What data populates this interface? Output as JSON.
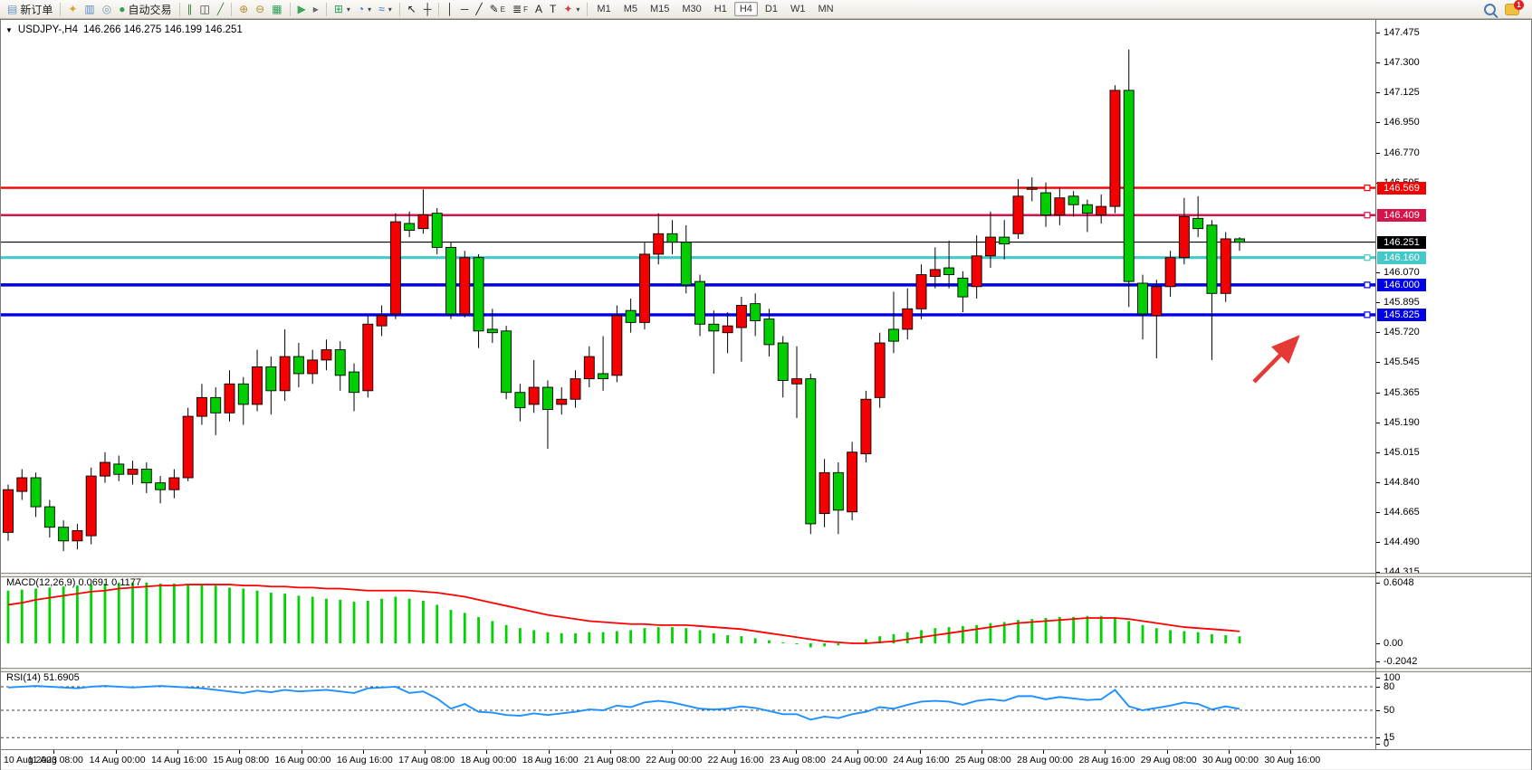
{
  "toolbar": {
    "new_order_label": "新订单",
    "auto_trading_label": "自动交易",
    "badge_count": "1",
    "timeframes": [
      "M1",
      "M5",
      "M15",
      "M30",
      "H1",
      "H4",
      "D1",
      "W1",
      "MN"
    ],
    "active_timeframe": "H4",
    "groups": [
      [
        {
          "name": "new-order-button",
          "glyph": "▤",
          "color": "#6d96c8",
          "labelKey": "new_order_label"
        }
      ],
      [
        {
          "name": "metaeditor-icon",
          "glyph": "✦",
          "color": "#d9a033"
        },
        {
          "name": "market-watch-icon",
          "glyph": "▥",
          "color": "#5b87c5"
        },
        {
          "name": "signals-icon",
          "glyph": "◎",
          "color": "#7f98ad"
        },
        {
          "name": "auto-trading-button",
          "glyph": "●",
          "color": "#2fa05c",
          "labelKey": "auto_trading_label"
        }
      ],
      [
        {
          "name": "bar-chart-icon",
          "glyph": "∥",
          "color": "#3a7d44"
        },
        {
          "name": "candlestick-chart-icon",
          "glyph": "◫",
          "color": "#333333"
        },
        {
          "name": "line-chart-icon",
          "glyph": "╱",
          "color": "#3a7d44"
        }
      ],
      [
        {
          "name": "zoom-in-icon",
          "glyph": "⊕",
          "color": "#b58a2a"
        },
        {
          "name": "zoom-out-icon",
          "glyph": "⊖",
          "color": "#b58a2a"
        },
        {
          "name": "tile-windows-icon",
          "glyph": "▦",
          "color": "#2e9e5b"
        }
      ],
      [
        {
          "name": "auto-scroll-icon",
          "glyph": "▶",
          "color": "#3aa657"
        },
        {
          "name": "chart-shift-icon",
          "glyph": "▸",
          "color": "#666666"
        }
      ],
      [
        {
          "name": "new-chart-dropdown",
          "glyph": "⊞",
          "color": "#2e9e5b",
          "caret": true
        },
        {
          "name": "period-dropdown",
          "glyph": "◔",
          "color": "#3a6fc4",
          "caret": true
        },
        {
          "name": "indicators-dropdown",
          "glyph": "≈",
          "color": "#3a6fc4",
          "caret": true
        }
      ],
      [
        {
          "name": "cursor-icon",
          "glyph": "↖",
          "color": "#222222"
        },
        {
          "name": "crosshair-icon",
          "glyph": "┼",
          "color": "#222222"
        }
      ],
      [
        {
          "name": "vertical-line-icon",
          "glyph": "│",
          "color": "#222222"
        },
        {
          "name": "horizontal-line-icon",
          "glyph": "─",
          "color": "#222222"
        },
        {
          "name": "trendline-icon",
          "glyph": "╱",
          "color": "#222222"
        },
        {
          "name": "equidistant-channel-icon",
          "glyph": "✎",
          "color": "#222222",
          "suffix": "E"
        },
        {
          "name": "fibonacci-icon",
          "glyph": "≣",
          "color": "#222222",
          "suffix": "F"
        },
        {
          "name": "text-icon",
          "glyph": "A",
          "color": "#222222"
        },
        {
          "name": "text-label-icon",
          "glyph": "T",
          "color": "#222222"
        },
        {
          "name": "arrows-dropdown",
          "glyph": "✦",
          "color": "#cc4444",
          "caret": true
        }
      ]
    ]
  },
  "chart": {
    "title_arrow": "▼",
    "symbol": "USDJPY-,H4",
    "ohlc": "146.266 146.275 146.199 146.251"
  },
  "indicators": {
    "macd": {
      "name": "MACD(12,26,9)",
      "values": "0.0691 0.1177"
    },
    "rsi": {
      "name": "RSI(14)",
      "value": "51.6905"
    }
  },
  "chart_data": {
    "type": "candlestick",
    "symbol": "USDJPY-",
    "timeframe": "H4",
    "up_color": "#f40000",
    "down_color": "#00ce00",
    "candles": [
      [
        144.55,
        144.83,
        144.5,
        144.8
      ],
      [
        144.79,
        144.92,
        144.74,
        144.87
      ],
      [
        144.87,
        144.9,
        144.64,
        144.7
      ],
      [
        144.7,
        144.74,
        144.52,
        144.58
      ],
      [
        144.58,
        144.62,
        144.44,
        144.5
      ],
      [
        144.5,
        144.6,
        144.45,
        144.56
      ],
      [
        144.53,
        144.93,
        144.48,
        144.88
      ],
      [
        144.88,
        145.02,
        144.84,
        144.96
      ],
      [
        144.95,
        145.0,
        144.85,
        144.89
      ],
      [
        144.89,
        144.97,
        144.83,
        144.92
      ],
      [
        144.92,
        144.96,
        144.78,
        144.84
      ],
      [
        144.84,
        144.88,
        144.72,
        144.8
      ],
      [
        144.8,
        144.92,
        144.75,
        144.87
      ],
      [
        144.87,
        145.28,
        144.85,
        145.23
      ],
      [
        145.23,
        145.42,
        145.18,
        145.34
      ],
      [
        145.34,
        145.4,
        145.12,
        145.25
      ],
      [
        145.25,
        145.5,
        145.2,
        145.42
      ],
      [
        145.42,
        145.46,
        145.18,
        145.3
      ],
      [
        145.3,
        145.62,
        145.26,
        145.52
      ],
      [
        145.52,
        145.58,
        145.24,
        145.38
      ],
      [
        145.38,
        145.74,
        145.32,
        145.58
      ],
      [
        145.58,
        145.66,
        145.4,
        145.48
      ],
      [
        145.48,
        145.62,
        145.42,
        145.56
      ],
      [
        145.56,
        145.68,
        145.5,
        145.62
      ],
      [
        145.62,
        145.67,
        145.38,
        145.47
      ],
      [
        145.49,
        145.54,
        145.26,
        145.37
      ],
      [
        145.38,
        145.82,
        145.34,
        145.77
      ],
      [
        145.76,
        145.88,
        145.7,
        145.82
      ],
      [
        145.83,
        146.42,
        145.8,
        146.37
      ],
      [
        146.36,
        146.43,
        146.28,
        146.32
      ],
      [
        146.33,
        146.56,
        146.3,
        146.41
      ],
      [
        146.42,
        146.45,
        146.18,
        146.22
      ],
      [
        146.22,
        146.25,
        145.8,
        145.83
      ],
      [
        145.83,
        146.2,
        145.81,
        146.16
      ],
      [
        146.16,
        146.18,
        145.63,
        145.73
      ],
      [
        145.74,
        145.86,
        145.66,
        145.72
      ],
      [
        145.73,
        145.76,
        145.33,
        145.37
      ],
      [
        145.37,
        145.42,
        145.2,
        145.28
      ],
      [
        145.3,
        145.56,
        145.25,
        145.4
      ],
      [
        145.4,
        145.44,
        145.04,
        145.27
      ],
      [
        145.3,
        145.4,
        145.24,
        145.33
      ],
      [
        145.33,
        145.5,
        145.28,
        145.45
      ],
      [
        145.45,
        145.64,
        145.4,
        145.58
      ],
      [
        145.48,
        145.7,
        145.38,
        145.45
      ],
      [
        145.47,
        145.88,
        145.43,
        145.82
      ],
      [
        145.85,
        145.92,
        145.72,
        145.78
      ],
      [
        145.78,
        146.25,
        145.74,
        146.18
      ],
      [
        146.18,
        146.42,
        146.12,
        146.3
      ],
      [
        146.3,
        146.38,
        146.18,
        146.25
      ],
      [
        146.25,
        146.35,
        145.95,
        146.0
      ],
      [
        146.02,
        146.06,
        145.7,
        145.77
      ],
      [
        145.77,
        145.85,
        145.48,
        145.73
      ],
      [
        145.72,
        145.84,
        145.6,
        145.76
      ],
      [
        145.75,
        145.93,
        145.55,
        145.88
      ],
      [
        145.89,
        145.95,
        145.7,
        145.79
      ],
      [
        145.8,
        145.86,
        145.58,
        145.65
      ],
      [
        145.66,
        145.7,
        145.34,
        145.44
      ],
      [
        145.42,
        145.64,
        145.22,
        145.45
      ],
      [
        145.45,
        145.48,
        144.54,
        144.6
      ],
      [
        144.66,
        144.98,
        144.58,
        144.9
      ],
      [
        144.9,
        144.96,
        144.54,
        144.68
      ],
      [
        144.67,
        145.08,
        144.62,
        145.02
      ],
      [
        145.01,
        145.38,
        144.96,
        145.33
      ],
      [
        145.34,
        145.72,
        145.28,
        145.66
      ],
      [
        145.74,
        145.96,
        145.6,
        145.67
      ],
      [
        145.74,
        145.98,
        145.68,
        145.86
      ],
      [
        145.86,
        146.12,
        145.8,
        146.06
      ],
      [
        146.05,
        146.22,
        145.98,
        146.09
      ],
      [
        146.1,
        146.26,
        145.98,
        146.06
      ],
      [
        146.04,
        146.08,
        145.84,
        145.93
      ],
      [
        145.99,
        146.29,
        145.92,
        146.17
      ],
      [
        146.17,
        146.43,
        146.1,
        146.28
      ],
      [
        146.28,
        146.38,
        146.15,
        146.24
      ],
      [
        146.3,
        146.62,
        146.27,
        146.52
      ],
      [
        146.56,
        146.63,
        146.49,
        146.57
      ],
      [
        146.54,
        146.6,
        146.34,
        146.41
      ],
      [
        146.41,
        146.57,
        146.35,
        146.51
      ],
      [
        146.52,
        146.55,
        146.4,
        146.47
      ],
      [
        146.47,
        146.5,
        146.31,
        146.42
      ],
      [
        146.41,
        146.53,
        146.36,
        146.46
      ],
      [
        146.46,
        147.17,
        146.42,
        147.14
      ],
      [
        147.14,
        147.38,
        145.87,
        146.02
      ],
      [
        146.01,
        146.06,
        145.68,
        145.83
      ],
      [
        145.82,
        146.03,
        145.57,
        145.99
      ],
      [
        145.99,
        146.2,
        145.93,
        146.16
      ],
      [
        146.16,
        146.51,
        146.12,
        146.4
      ],
      [
        146.39,
        146.52,
        146.28,
        146.33
      ],
      [
        146.35,
        146.38,
        145.56,
        145.95
      ],
      [
        145.95,
        146.31,
        145.9,
        146.27
      ],
      [
        146.27,
        146.28,
        146.2,
        146.25
      ]
    ],
    "price_levels": [
      {
        "price": 146.569,
        "color": "#f40000",
        "width": 2.4
      },
      {
        "price": 146.409,
        "color": "#d6144a",
        "width": 2.4
      },
      {
        "price": 146.251,
        "color": "#000000",
        "width": 1.2
      },
      {
        "price": 146.16,
        "color": "#45c8c8",
        "width": 3.2
      },
      {
        "price": 146.0,
        "color": "#0000e6",
        "width": 3.4
      },
      {
        "price": 145.825,
        "color": "#0000e6",
        "width": 3.4
      }
    ],
    "price_badges": [
      {
        "value": "146.569",
        "price": 146.569,
        "bg": "#f40000"
      },
      {
        "value": "146.409",
        "price": 146.409,
        "bg": "#d6144a"
      },
      {
        "value": "146.251",
        "price": 146.251,
        "bg": "#000000"
      },
      {
        "value": "146.160",
        "price": 146.16,
        "bg": "#45c8c8"
      },
      {
        "value": "146.000",
        "price": 146.0,
        "bg": "#0000e6"
      },
      {
        "value": "145.825",
        "price": 145.825,
        "bg": "#0000e6"
      }
    ],
    "price_axis_ticks": [
      "147.475",
      "147.300",
      "147.125",
      "146.950",
      "146.770",
      "146.595",
      "146.070",
      "145.895",
      "145.720",
      "145.545",
      "145.365",
      "145.190",
      "145.015",
      "144.840",
      "144.665",
      "144.490",
      "144.315"
    ],
    "macd": {
      "hist_color": "#00d400",
      "signal_color": "#ff0000",
      "axis": [
        "0.6048",
        "0.00",
        "-0.2042"
      ],
      "axis_values": [
        0.6048,
        0,
        -0.2042
      ],
      "hist": [
        0.52,
        0.53,
        0.54,
        0.55,
        0.56,
        0.57,
        0.58,
        0.59,
        0.6,
        0.6,
        0.6,
        0.59,
        0.59,
        0.58,
        0.58,
        0.57,
        0.55,
        0.54,
        0.52,
        0.5,
        0.49,
        0.47,
        0.46,
        0.44,
        0.43,
        0.41,
        0.42,
        0.44,
        0.46,
        0.44,
        0.42,
        0.38,
        0.33,
        0.3,
        0.26,
        0.22,
        0.18,
        0.15,
        0.13,
        0.11,
        0.1,
        0.1,
        0.11,
        0.11,
        0.12,
        0.13,
        0.15,
        0.16,
        0.16,
        0.15,
        0.13,
        0.1,
        0.08,
        0.07,
        0.05,
        0.03,
        0.01,
        -0.01,
        -0.04,
        -0.03,
        -0.02,
        0.01,
        0.04,
        0.07,
        0.09,
        0.11,
        0.13,
        0.15,
        0.16,
        0.17,
        0.18,
        0.2,
        0.21,
        0.23,
        0.24,
        0.25,
        0.26,
        0.26,
        0.27,
        0.27,
        0.26,
        0.22,
        0.18,
        0.15,
        0.13,
        0.12,
        0.11,
        0.09,
        0.08,
        0.069
      ],
      "signal": [
        0.38,
        0.4,
        0.43,
        0.45,
        0.47,
        0.49,
        0.51,
        0.52,
        0.54,
        0.55,
        0.56,
        0.57,
        0.57,
        0.58,
        0.58,
        0.58,
        0.58,
        0.57,
        0.57,
        0.56,
        0.56,
        0.55,
        0.55,
        0.54,
        0.54,
        0.53,
        0.52,
        0.52,
        0.52,
        0.52,
        0.51,
        0.5,
        0.48,
        0.46,
        0.43,
        0.4,
        0.37,
        0.34,
        0.31,
        0.28,
        0.26,
        0.24,
        0.22,
        0.21,
        0.2,
        0.19,
        0.19,
        0.18,
        0.18,
        0.18,
        0.17,
        0.16,
        0.15,
        0.14,
        0.12,
        0.1,
        0.08,
        0.06,
        0.04,
        0.02,
        0.01,
        0.0,
        0.0,
        0.01,
        0.02,
        0.04,
        0.06,
        0.08,
        0.1,
        0.12,
        0.14,
        0.16,
        0.18,
        0.2,
        0.21,
        0.22,
        0.23,
        0.24,
        0.25,
        0.25,
        0.25,
        0.24,
        0.22,
        0.2,
        0.18,
        0.16,
        0.15,
        0.14,
        0.13,
        0.118
      ]
    },
    "rsi": {
      "line_color": "#1e90ff",
      "axis": [
        "100",
        "80",
        "50",
        "15",
        "0"
      ],
      "axis_values": [
        100,
        80,
        50,
        15,
        0
      ],
      "dashed_levels": [
        80,
        50,
        15
      ],
      "values": [
        79,
        80,
        81,
        80,
        79,
        78,
        80,
        81,
        80,
        79,
        80,
        81,
        80,
        79,
        78,
        76,
        74,
        72,
        75,
        73,
        76,
        74,
        75,
        76,
        74,
        72,
        78,
        79,
        80,
        72,
        74,
        65,
        52,
        58,
        48,
        47,
        44,
        43,
        46,
        44,
        46,
        48,
        51,
        50,
        56,
        54,
        60,
        62,
        60,
        56,
        52,
        51,
        52,
        55,
        53,
        49,
        45,
        45,
        38,
        42,
        40,
        45,
        48,
        54,
        52,
        57,
        61,
        62,
        61,
        57,
        62,
        64,
        62,
        68,
        68,
        64,
        67,
        65,
        63,
        64,
        76,
        55,
        50,
        53,
        56,
        60,
        58,
        51,
        55,
        51.7
      ]
    },
    "time_labels": [
      "10 Aug 2023",
      "11 Aug 08:00",
      "14 Aug 00:00",
      "14 Aug 16:00",
      "15 Aug 08:00",
      "16 Aug 00:00",
      "16 Aug 16:00",
      "17 Aug 08:00",
      "18 Aug 00:00",
      "18 Aug 16:00",
      "21 Aug 08:00",
      "22 Aug 00:00",
      "22 Aug 16:00",
      "23 Aug 08:00",
      "24 Aug 00:00",
      "24 Aug 16:00",
      "25 Aug 08:00",
      "28 Aug 00:00",
      "28 Aug 16:00",
      "29 Aug 08:00",
      "30 Aug 00:00",
      "30 Aug 16:00"
    ],
    "annotation": {
      "type": "arrow",
      "color": "#e53935",
      "points_at_price": 145.825
    }
  }
}
